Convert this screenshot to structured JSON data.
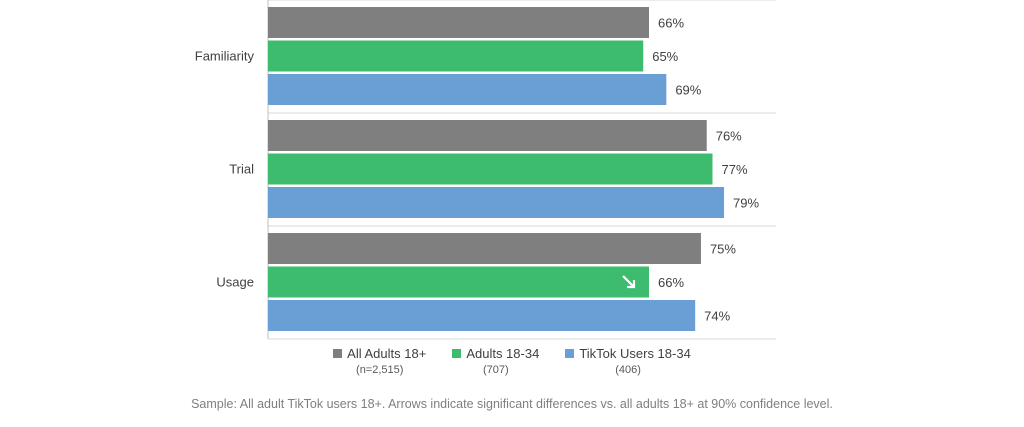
{
  "chart_data": {
    "type": "bar",
    "orientation": "horizontal",
    "categories": [
      "Familiarity",
      "Trial",
      "Usage"
    ],
    "series": [
      {
        "name": "All Adults 18+",
        "sub": "(n=2,515)",
        "color": "#7f7f7f",
        "values": [
          66,
          76,
          75
        ],
        "labels": [
          "66%",
          "76%",
          "75%"
        ]
      },
      {
        "name": "Adults 18-34",
        "sub": "(707)",
        "color": "#3dbb6e",
        "values": [
          65,
          77,
          66
        ],
        "labels": [
          "65%",
          "77%",
          "66%"
        ]
      },
      {
        "name": "TikTok Users 18-34",
        "sub": "(406)",
        "color": "#6a9fd6",
        "values": [
          69,
          79,
          74
        ],
        "labels": [
          "69%",
          "79%",
          "74%"
        ]
      }
    ],
    "significance_arrows": [
      {
        "category": "Usage",
        "series": "Adults 18-34",
        "direction": "down"
      }
    ],
    "xlim": [
      0,
      88
    ],
    "grid": false,
    "legend_position": "bottom"
  },
  "footnote": "Sample: All adult TikTok users 18+. Arrows indicate significant differences vs. all adults 18+ at 90% confidence level."
}
